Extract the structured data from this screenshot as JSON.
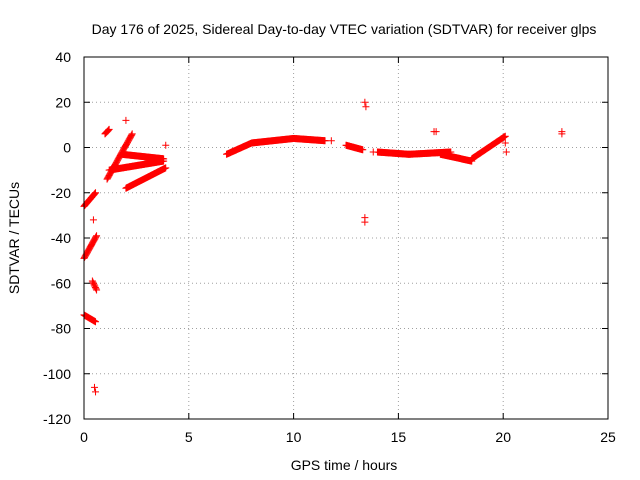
{
  "chart_data": {
    "type": "scatter",
    "title": "Day 176 of 2025, Sidereal Day-to-day VTEC variation (SDTVAR) for receiver glps",
    "xlabel": "GPS time / hours",
    "ylabel": "SDTVAR / TECUs",
    "xlim": [
      0,
      25
    ],
    "ylim": [
      -120,
      40
    ],
    "xticks": [
      0,
      5,
      10,
      15,
      20,
      25
    ],
    "yticks": [
      -120,
      -100,
      -80,
      -60,
      -40,
      -20,
      0,
      20,
      40
    ],
    "grid": true,
    "marker": "+",
    "series": [
      {
        "name": "SDTVAR",
        "color": "#ff0000",
        "segments": [
          {
            "x0": 0.0,
            "x1": 0.55,
            "y0": -26,
            "y1": -20
          },
          {
            "x0": 0.0,
            "x1": 0.6,
            "y0": -49,
            "y1": -39
          },
          {
            "x0": 0.0,
            "x1": 0.55,
            "y0": -74,
            "y1": -77
          },
          {
            "x0": 0.4,
            "x1": 0.6,
            "y0": -59,
            "y1": -63
          },
          {
            "x0": 1.0,
            "x1": 1.2,
            "y0": 6,
            "y1": 8
          },
          {
            "x0": 1.1,
            "x1": 2.3,
            "y0": -14,
            "y1": 6
          },
          {
            "x0": 1.2,
            "x1": 3.8,
            "y0": -10,
            "y1": -6
          },
          {
            "x0": 1.8,
            "x1": 3.8,
            "y0": -3,
            "y1": -5
          },
          {
            "x0": 2.0,
            "x1": 3.9,
            "y0": -18,
            "y1": -9
          },
          {
            "x0": 6.8,
            "x1": 8.0,
            "y0": -3,
            "y1": 2
          },
          {
            "x0": 8.0,
            "x1": 10.0,
            "y0": 2,
            "y1": 4
          },
          {
            "x0": 10.0,
            "x1": 11.5,
            "y0": 4,
            "y1": 3
          },
          {
            "x0": 12.5,
            "x1": 13.3,
            "y0": 1,
            "y1": -1
          },
          {
            "x0": 14.0,
            "x1": 15.5,
            "y0": -2,
            "y1": -3
          },
          {
            "x0": 15.5,
            "x1": 17.5,
            "y0": -3,
            "y1": -2
          },
          {
            "x0": 17.0,
            "x1": 18.5,
            "y0": -3,
            "y1": -6
          },
          {
            "x0": 18.5,
            "x1": 20.1,
            "y0": -5,
            "y1": 5
          }
        ],
        "points": [
          {
            "x": 0.45,
            "y": -32
          },
          {
            "x": 0.5,
            "y": -106
          },
          {
            "x": 0.55,
            "y": -108
          },
          {
            "x": 2.0,
            "y": 12
          },
          {
            "x": 3.9,
            "y": 1
          },
          {
            "x": 11.8,
            "y": 3
          },
          {
            "x": 13.4,
            "y": 20
          },
          {
            "x": 13.45,
            "y": 18
          },
          {
            "x": 13.4,
            "y": -31
          },
          {
            "x": 13.4,
            "y": -33
          },
          {
            "x": 13.8,
            "y": -2
          },
          {
            "x": 16.7,
            "y": 7
          },
          {
            "x": 16.8,
            "y": 7
          },
          {
            "x": 20.1,
            "y": 2
          },
          {
            "x": 20.15,
            "y": -2
          },
          {
            "x": 22.8,
            "y": 7
          },
          {
            "x": 22.8,
            "y": 6
          }
        ]
      }
    ]
  }
}
